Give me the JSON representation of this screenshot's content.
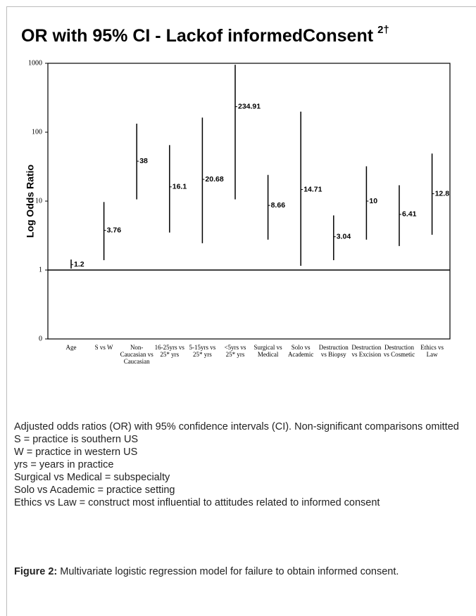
{
  "chart_data": {
    "type": "errorbar",
    "title": "OR with 95% CI - Lackof informedConsent",
    "title_sup": "2†",
    "ylabel": "Log Odds Ratio",
    "log_scale": true,
    "categories": [
      "Age",
      "S vs W",
      "Non-\nCaucasian vs\nCaucasian",
      "16-25yrs vs\n25* yrs",
      "5-15yrs vs\n25* yrs",
      "<5yrs vs\n25* yrs",
      "Surgical vs\nMedical",
      "Solo vs\nAcademic",
      "Destruction\nvs Biopsy",
      "Destruction\nvs Excision",
      "Destruction\nvs Cosmetic",
      "Ethics vs\nLaw"
    ],
    "values": [
      1.2,
      3.76,
      38,
      16.1,
      20.68,
      234.91,
      8.66,
      14.71,
      3.04,
      10,
      6.41,
      12.8
    ],
    "lower": [
      1.05,
      1.39,
      10.6,
      3.5,
      2.45,
      10.6,
      2.76,
      1.15,
      1.39,
      2.76,
      2.23,
      3.25
    ],
    "upper": [
      1.42,
      9.7,
      133,
      65,
      163,
      950,
      24,
      199,
      6.2,
      32,
      17,
      49
    ],
    "color": "#000000",
    "ylim": [
      0.1,
      1000
    ],
    "yticks": [
      {
        "value": 0.1,
        "label": "0"
      },
      1,
      10,
      100,
      1000
    ],
    "reference_line": 1
  },
  "notes": [
    "Adjusted odds ratios (OR) with 95% confidence intervals (CI). Non-significant comparisons omitted",
    "S = practice is southern US",
    "W = practice in western US",
    "yrs = years in practice",
    "Surgical vs Medical = subspecialty",
    "Solo vs Academic = practice setting",
    "Ethics vs Law = construct most influential to attitudes related to informed consent"
  ],
  "figure_label": "Figure 2:",
  "figure_caption": "Multivariate logistic regression model for failure to obtain informed consent."
}
